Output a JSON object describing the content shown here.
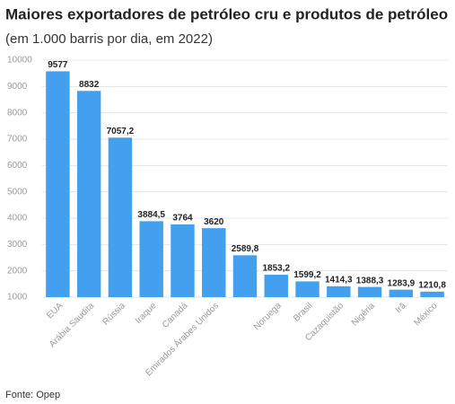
{
  "chart_data": {
    "type": "bar",
    "title": "Maiores exportadores de petróleo cru e produtos de petróleo",
    "subtitle": "(em 1.000 barris por dia, em 2022)",
    "source": "Fonte: Opep",
    "categories": [
      "EUA",
      "Arábia Saudita",
      "Rússia",
      "Iraque",
      "Canadá",
      "Emirados Árabes Unidos",
      null,
      "Noruega",
      "Brasil",
      "Cazaquistão",
      "Nigéria",
      "Irã",
      "México"
    ],
    "values": [
      9577,
      8832,
      7057.2,
      3884.5,
      3764,
      3620,
      2589.8,
      1853.2,
      1599.2,
      1414.3,
      1388.3,
      1283.9,
      1210.8
    ],
    "value_labels": [
      "9577",
      "8832",
      "7057,2",
      "3884,5",
      "3764",
      "3620",
      "2589,8",
      "1853,2",
      "1599,2",
      "1414,3",
      "1388,3",
      "1283,9",
      "1210,8"
    ],
    "color": "#42a0ee",
    "ylim": [
      1000,
      10000
    ],
    "yticks": [
      1000,
      2000,
      3000,
      4000,
      5000,
      6000,
      7000,
      8000,
      9000,
      10000
    ],
    "grid": true
  }
}
